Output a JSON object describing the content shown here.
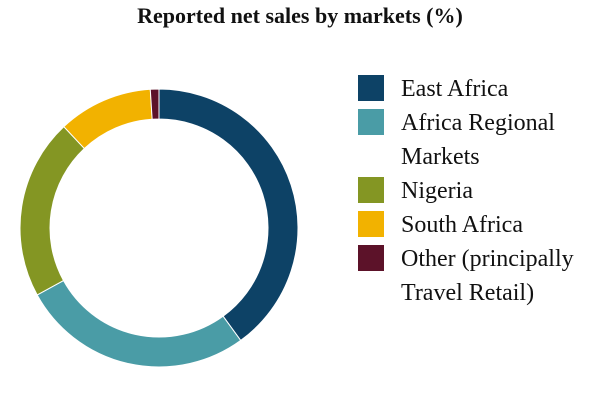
{
  "chart_data": {
    "type": "pie",
    "title": "Reported net sales by markets (%)",
    "categories": [
      "East Africa",
      "Africa Regional Markets",
      "Nigeria",
      "South Africa",
      "Other (principally Travel Retail)"
    ],
    "values": [
      40,
      27,
      21,
      11,
      1
    ],
    "colors": [
      "#0d4266",
      "#4a9ca6",
      "#849623",
      "#f2b200",
      "#5c1229"
    ],
    "legend": "right",
    "donut": true,
    "start_angle_deg": 0,
    "direction": "clockwise"
  }
}
